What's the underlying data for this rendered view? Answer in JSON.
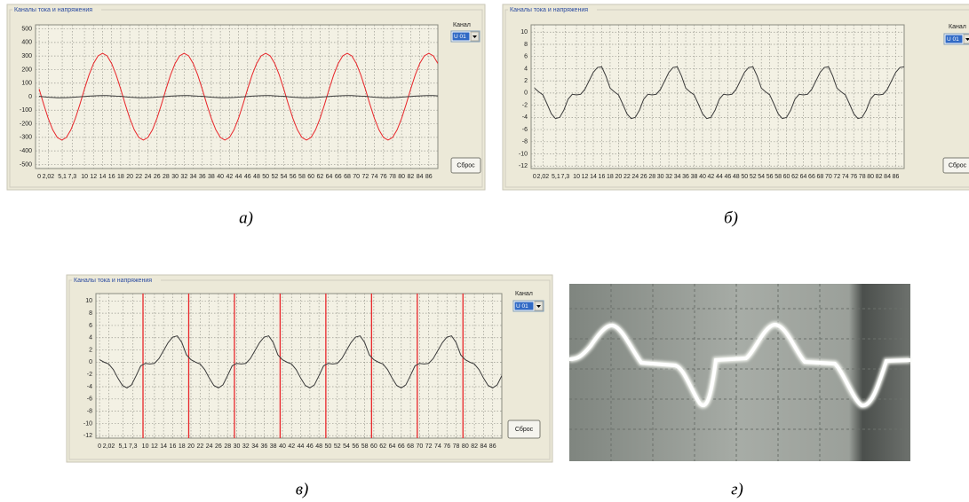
{
  "chart_data": [
    {
      "type": "line",
      "title": "Каналы тока и напряжения",
      "caption": "а)",
      "channel_label": "Канал",
      "channel_value": "U 01",
      "button": "Сброс",
      "x": [
        0,
        1,
        2,
        3,
        4,
        5,
        6,
        7,
        8,
        9,
        10,
        11,
        12,
        13,
        14,
        15,
        16,
        17,
        18,
        19,
        20,
        21,
        22,
        23,
        24,
        25,
        26,
        27,
        28,
        29,
        30,
        31,
        32,
        33,
        34,
        35,
        36,
        37,
        38,
        39,
        40,
        41,
        42,
        43,
        44,
        45,
        46,
        47,
        48,
        49,
        50,
        51,
        52,
        53,
        54,
        55,
        56,
        57,
        58,
        59,
        60,
        61,
        62,
        63,
        64,
        65,
        66,
        67,
        68,
        69,
        70,
        71,
        72,
        73,
        74,
        75,
        76,
        77,
        78,
        79,
        80,
        81,
        82,
        83,
        84,
        85,
        86,
        87,
        88
      ],
      "xlim": [
        -0.8,
        88
      ],
      "xticks": [
        {
          "value": 0,
          "label": "0"
        },
        {
          "value": 2.02,
          "label": "2,02"
        },
        {
          "value": 5.1,
          "label": "5,1"
        },
        {
          "value": 7.3,
          "label": "7,3"
        },
        10,
        12,
        14,
        16,
        18,
        20,
        22,
        24,
        26,
        28,
        30,
        32,
        34,
        36,
        38,
        40,
        42,
        44,
        46,
        48,
        50,
        52,
        54,
        56,
        58,
        60,
        62,
        64,
        66,
        68,
        70,
        72,
        74,
        76,
        78,
        80,
        82,
        84,
        86
      ],
      "ylim": [
        -530,
        530
      ],
      "yticks": [
        500,
        400,
        300,
        200,
        100,
        0,
        -100,
        -200,
        -300,
        -400,
        -500
      ],
      "grid": true,
      "series": [
        {
          "color": "#e8262a",
          "values": [
            56,
            -56,
            -160,
            -245,
            -301,
            -320,
            -301,
            -245,
            -160,
            -56,
            56,
            160,
            245,
            301,
            320,
            301,
            245,
            160,
            56,
            -56,
            -160,
            -245,
            -301,
            -320,
            -301,
            -245,
            -160,
            -56,
            56,
            160,
            245,
            301,
            320,
            301,
            245,
            160,
            56,
            -56,
            -160,
            -245,
            -301,
            -320,
            -301,
            -245,
            -160,
            -56,
            56,
            160,
            245,
            301,
            320,
            301,
            245,
            160,
            56,
            -56,
            -160,
            -245,
            -301,
            -320,
            -301,
            -245,
            -160,
            -56,
            56,
            160,
            245,
            301,
            320,
            301,
            245,
            160,
            56,
            -56,
            -160,
            -245,
            -301,
            -320,
            -301,
            -245,
            -160,
            -56,
            56,
            160,
            245,
            301,
            320,
            301,
            245
          ]
        },
        {
          "color": "#3a3a3a",
          "values": [
            3,
            -1,
            -4,
            -6,
            -8,
            -8,
            -7,
            -6,
            -3,
            -1,
            2,
            4,
            6,
            7,
            8,
            8,
            6,
            4,
            3,
            -1,
            -4,
            -6,
            -8,
            -8,
            -7,
            -6,
            -3,
            -1,
            2,
            4,
            6,
            7,
            8,
            8,
            6,
            4,
            3,
            -1,
            -4,
            -6,
            -8,
            -8,
            -7,
            -6,
            -3,
            -1,
            2,
            4,
            6,
            7,
            8,
            8,
            6,
            4,
            3,
            -1,
            -4,
            -6,
            -8,
            -8,
            -7,
            -6,
            -3,
            -1,
            2,
            4,
            6,
            7,
            8,
            8,
            6,
            4,
            3,
            -1,
            -4,
            -6,
            -8,
            -8,
            -7,
            -6,
            -3,
            -1,
            2,
            4,
            6,
            7,
            8,
            8,
            6
          ]
        }
      ]
    },
    {
      "type": "line",
      "title": "Каналы тока и напряжения",
      "caption": "б)",
      "channel_label": "Канал",
      "channel_value": "U 01",
      "button": "Сброс",
      "x": [
        0,
        1,
        2,
        3,
        4,
        5,
        6,
        7,
        8,
        9,
        10,
        11,
        12,
        13,
        14,
        15,
        16,
        17,
        18,
        19,
        20,
        21,
        22,
        23,
        24,
        25,
        26,
        27,
        28,
        29,
        30,
        31,
        32,
        33,
        34,
        35,
        36,
        37,
        38,
        39,
        40,
        41,
        42,
        43,
        44,
        45,
        46,
        47,
        48,
        49,
        50,
        51,
        52,
        53,
        54,
        55,
        56,
        57,
        58,
        59,
        60,
        61,
        62,
        63,
        64,
        65,
        66,
        67,
        68,
        69,
        70,
        71,
        72,
        73,
        74,
        75,
        76,
        77,
        78,
        79,
        80,
        81,
        82,
        83,
        84,
        85,
        86,
        87,
        88
      ],
      "xlim": [
        -0.8,
        88
      ],
      "xticks": [
        {
          "value": 0,
          "label": "0"
        },
        {
          "value": 2.02,
          "label": "2,02"
        },
        {
          "value": 5.1,
          "label": "5,1"
        },
        {
          "value": 7.3,
          "label": "7,3"
        },
        10,
        12,
        14,
        16,
        18,
        20,
        22,
        24,
        26,
        28,
        30,
        32,
        34,
        36,
        38,
        40,
        42,
        44,
        46,
        48,
        50,
        52,
        54,
        56,
        58,
        60,
        62,
        64,
        66,
        68,
        70,
        72,
        74,
        76,
        78,
        80,
        82,
        84,
        86
      ],
      "ylim": [
        -12.4,
        11.2
      ],
      "yticks": [
        10,
        8,
        6,
        4,
        2,
        0,
        -2,
        -4,
        -6,
        -8,
        -10,
        -12
      ],
      "grid": true,
      "series": [
        {
          "color": "#3a3a3a",
          "values": [
            0.8,
            0.2,
            -0.3,
            -1.8,
            -3.4,
            -4.2,
            -4,
            -2.8,
            -1,
            -0.2,
            -0.3,
            -0.2,
            0.6,
            2,
            3.4,
            4.2,
            4.3,
            2.8,
            0.8,
            0.2,
            -0.3,
            -1.8,
            -3.4,
            -4.2,
            -4,
            -2.8,
            -1,
            -0.2,
            -0.3,
            -0.2,
            0.6,
            2,
            3.4,
            4.2,
            4.3,
            2.8,
            0.8,
            0.2,
            -0.3,
            -1.8,
            -3.4,
            -4.2,
            -4,
            -2.8,
            -1,
            -0.2,
            -0.3,
            -0.2,
            0.6,
            2,
            3.4,
            4.2,
            4.3,
            2.8,
            0.8,
            0.2,
            -0.3,
            -1.8,
            -3.4,
            -4.2,
            -4,
            -2.8,
            -1,
            -0.2,
            -0.3,
            -0.2,
            0.6,
            2,
            3.4,
            4.2,
            4.3,
            2.8,
            0.8,
            0.2,
            -0.3,
            -1.8,
            -3.4,
            -4.2,
            -4,
            -2.8,
            -1,
            -0.2,
            -0.3,
            -0.2,
            0.6,
            2,
            3.4,
            4.2,
            4.3
          ]
        }
      ]
    },
    {
      "type": "line",
      "title": "Каналы тока и напряжения",
      "caption": "в)",
      "channel_label": "Канал",
      "channel_value": "U 01",
      "button": "Сброс",
      "x": [
        0,
        1,
        2,
        3,
        4,
        5,
        6,
        7,
        8,
        9,
        10,
        11,
        12,
        13,
        14,
        15,
        16,
        17,
        18,
        19,
        20,
        21,
        22,
        23,
        24,
        25,
        26,
        27,
        28,
        29,
        30,
        31,
        32,
        33,
        34,
        35,
        36,
        37,
        38,
        39,
        40,
        41,
        42,
        43,
        44,
        45,
        46,
        47,
        48,
        49,
        50,
        51,
        52,
        53,
        54,
        55,
        56,
        57,
        58,
        59,
        60,
        61,
        62,
        63,
        64,
        65,
        66,
        67,
        68,
        69,
        70,
        71,
        72,
        73,
        74,
        75,
        76,
        77,
        78,
        79,
        80,
        81,
        82,
        83,
        84,
        85,
        86,
        87,
        88
      ],
      "xlim": [
        -0.8,
        88
      ],
      "xticks": [
        {
          "value": 0,
          "label": "0"
        },
        {
          "value": 2.02,
          "label": "2,02"
        },
        {
          "value": 5.1,
          "label": "5,1"
        },
        {
          "value": 7.3,
          "label": "7,3"
        },
        10,
        12,
        14,
        16,
        18,
        20,
        22,
        24,
        26,
        28,
        30,
        32,
        34,
        36,
        38,
        40,
        42,
        44,
        46,
        48,
        50,
        52,
        54,
        56,
        58,
        60,
        62,
        64,
        66,
        68,
        70,
        72,
        74,
        76,
        78,
        80,
        82,
        84,
        86
      ],
      "ylim": [
        -12.4,
        11.2
      ],
      "yticks": [
        10,
        8,
        6,
        4,
        2,
        0,
        -2,
        -4,
        -6,
        -8,
        -10,
        -12
      ],
      "grid": true,
      "series": [
        {
          "color": "#3a3a3a",
          "values": [
            0.4,
            0,
            -0.3,
            -1.2,
            -2.6,
            -3.8,
            -4.2,
            -3.7,
            -2.2,
            -0.6,
            -0.2,
            -0.3,
            -0.2,
            0.6,
            1.9,
            3.2,
            4.1,
            4.3,
            3.2,
            1.2,
            0.4,
            0,
            -0.3,
            -1.2,
            -2.6,
            -3.8,
            -4.2,
            -3.7,
            -2.2,
            -0.6,
            -0.2,
            -0.3,
            -0.2,
            0.6,
            1.9,
            3.2,
            4.1,
            4.3,
            3.2,
            1.2,
            0.4,
            0,
            -0.3,
            -1.2,
            -2.6,
            -3.8,
            -4.2,
            -3.7,
            -2.2,
            -0.6,
            -0.2,
            -0.3,
            -0.2,
            0.6,
            1.9,
            3.2,
            4.1,
            4.3,
            3.2,
            1.2,
            0.4,
            0,
            -0.3,
            -1.2,
            -2.6,
            -3.8,
            -4.2,
            -3.7,
            -2.2,
            -0.6,
            -0.2,
            -0.3,
            -0.2,
            0.6,
            1.9,
            3.2,
            4.1,
            4.3,
            3.2,
            1.2,
            0.4,
            0,
            -0.3,
            -1.2,
            -2.6,
            -3.8,
            -4.2,
            -3.7,
            -2.2
          ]
        }
      ],
      "vlines": {
        "color": "#e8262a",
        "x": [
          9.5,
          19.5,
          29.5,
          39.5,
          49.5,
          59.5,
          69.5,
          79.5
        ]
      }
    }
  ],
  "photo_caption": "г)"
}
